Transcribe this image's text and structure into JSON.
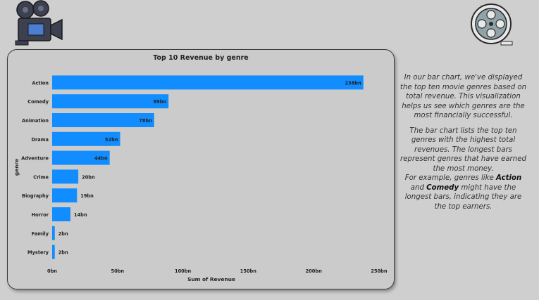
{
  "icons": {
    "top_left": "movie-camera-icon",
    "top_right": "film-reel-icon"
  },
  "description": {
    "paragraph1": "In our bar chart, we've displayed the top ten movie genres based on total revenue. This visualization helps us see which genres are the most financially successful.",
    "paragraph2_intro": "The bar chart lists the top ten genres with the highest total revenues. The longest bars represent genres that have earned the most money.",
    "paragraph2_example_start": "For example, genres like ",
    "highlight1": "Action",
    "and_text": " and ",
    "highlight2": "Comedy",
    "paragraph2_example_end": " might have the longest bars, indicating they are the top earners."
  },
  "chart_data": {
    "type": "bar",
    "orientation": "horizontal",
    "title": "Top 10 Revenue by genre",
    "xlabel": "Sum of Revenue",
    "ylabel": "genre",
    "bar_color": "#118dff",
    "categories": [
      "Action",
      "Comedy",
      "Animation",
      "Drama",
      "Adventure",
      "Crime",
      "Biography",
      "Horror",
      "Family",
      "Mystery"
    ],
    "values": [
      238,
      89,
      78,
      52,
      44,
      20,
      19,
      14,
      2,
      2
    ],
    "value_labels": [
      "238bn",
      "89bn",
      "78bn",
      "52bn",
      "44bn",
      "20bn",
      "19bn",
      "14bn",
      "2bn",
      "2bn"
    ],
    "xlim": [
      0,
      250
    ],
    "xticks": [
      0,
      50,
      100,
      150,
      200,
      250
    ],
    "xtick_labels": [
      "0bn",
      "50bn",
      "100bn",
      "150bn",
      "200bn",
      "250bn"
    ],
    "grid": false
  }
}
